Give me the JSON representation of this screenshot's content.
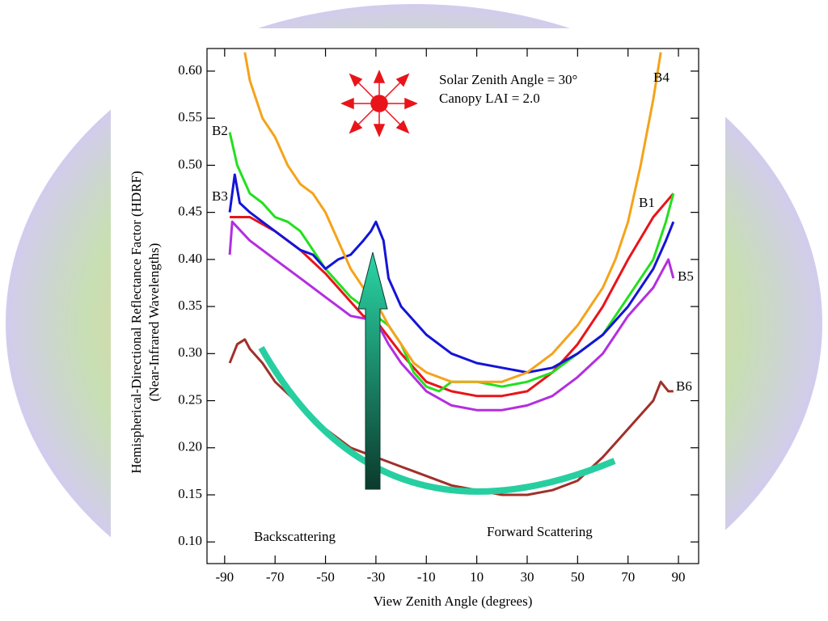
{
  "chart_data": {
    "type": "line",
    "xlabel": "View Zenith Angle (degrees)",
    "ylabel": [
      "Hemispherical-Directional Reflectance Factor (HDRF)",
      "(Near-Infrared Wavelengths)"
    ],
    "annotations": [
      "Solar Zenith Angle = 30°",
      "Canopy LAI = 2.0",
      "Backscattering",
      "Forward Scattering"
    ],
    "xlim": [
      -97,
      98
    ],
    "ylim": [
      0.077,
      0.624
    ],
    "xticks": [
      -90,
      -70,
      -50,
      -30,
      -10,
      10,
      30,
      50,
      70,
      90
    ],
    "yticks": [
      {
        "value": 0.1,
        "label": "0.10"
      },
      {
        "value": 0.15,
        "label": "0.15"
      },
      {
        "value": 0.2,
        "label": "0.20"
      },
      {
        "value": 0.25,
        "label": "0.25"
      },
      {
        "value": 0.3,
        "label": "0.30"
      },
      {
        "value": 0.35,
        "label": "0.35"
      },
      {
        "value": 0.4,
        "label": "0.40"
      },
      {
        "value": 0.45,
        "label": "0.45"
      },
      {
        "value": 0.5,
        "label": "0.50"
      },
      {
        "value": 0.55,
        "label": "0.55"
      },
      {
        "value": 0.6,
        "label": "0.60"
      }
    ],
    "series": [
      {
        "name": "B1",
        "color": "#e8141a",
        "x": [
          -88,
          -80,
          -70,
          -60,
          -50,
          -40,
          -35,
          -30,
          -20,
          -10,
          0,
          10,
          20,
          30,
          40,
          50,
          60,
          70,
          80,
          88
        ],
        "values": [
          0.445,
          0.445,
          0.43,
          0.41,
          0.385,
          0.355,
          0.34,
          0.335,
          0.3,
          0.27,
          0.26,
          0.255,
          0.255,
          0.26,
          0.28,
          0.31,
          0.35,
          0.4,
          0.445,
          0.47
        ]
      },
      {
        "name": "B2",
        "color": "#22e01e",
        "x": [
          -88,
          -85,
          -80,
          -75,
          -70,
          -65,
          -60,
          -55,
          -50,
          -45,
          -40,
          -35,
          -30,
          -25,
          -20,
          -15,
          -10,
          -5,
          0,
          10,
          20,
          30,
          40,
          50,
          60,
          70,
          80,
          85,
          88
        ],
        "values": [
          0.535,
          0.5,
          0.47,
          0.46,
          0.445,
          0.44,
          0.43,
          0.41,
          0.39,
          0.375,
          0.36,
          0.35,
          0.34,
          0.33,
          0.31,
          0.28,
          0.265,
          0.26,
          0.27,
          0.27,
          0.265,
          0.27,
          0.28,
          0.3,
          0.32,
          0.36,
          0.4,
          0.44,
          0.47
        ]
      },
      {
        "name": "B3",
        "color": "#1414d8",
        "x": [
          -88,
          -86,
          -84,
          -80,
          -75,
          -70,
          -65,
          -60,
          -55,
          -50,
          -45,
          -40,
          -35,
          -32,
          -30,
          -27,
          -25,
          -20,
          -10,
          0,
          10,
          20,
          30,
          40,
          50,
          60,
          70,
          80,
          85,
          88
        ],
        "values": [
          0.45,
          0.49,
          0.46,
          0.45,
          0.44,
          0.43,
          0.42,
          0.41,
          0.405,
          0.39,
          0.4,
          0.405,
          0.42,
          0.43,
          0.44,
          0.42,
          0.38,
          0.35,
          0.32,
          0.3,
          0.29,
          0.285,
          0.28,
          0.285,
          0.3,
          0.32,
          0.35,
          0.39,
          0.42,
          0.44
        ]
      },
      {
        "name": "B4",
        "color": "#f5a31a",
        "x": [
          -82,
          -80,
          -75,
          -70,
          -65,
          -60,
          -55,
          -50,
          -45,
          -40,
          -35,
          -30,
          -25,
          -20,
          -15,
          -10,
          0,
          10,
          20,
          30,
          40,
          50,
          60,
          65,
          70,
          75,
          80,
          83
        ],
        "values": [
          0.62,
          0.59,
          0.55,
          0.53,
          0.5,
          0.48,
          0.47,
          0.45,
          0.42,
          0.39,
          0.37,
          0.355,
          0.33,
          0.31,
          0.29,
          0.28,
          0.27,
          0.27,
          0.27,
          0.28,
          0.3,
          0.33,
          0.37,
          0.4,
          0.44,
          0.5,
          0.57,
          0.62
        ]
      },
      {
        "name": "B5",
        "color": "#b32ee0",
        "x": [
          -88,
          -87,
          -80,
          -70,
          -60,
          -50,
          -40,
          -30,
          -25,
          -20,
          -10,
          0,
          10,
          20,
          30,
          40,
          50,
          60,
          70,
          80,
          86,
          88
        ],
        "values": [
          0.405,
          0.44,
          0.42,
          0.4,
          0.38,
          0.36,
          0.34,
          0.335,
          0.31,
          0.29,
          0.26,
          0.245,
          0.24,
          0.24,
          0.245,
          0.255,
          0.275,
          0.3,
          0.34,
          0.37,
          0.4,
          0.38
        ]
      },
      {
        "name": "B6",
        "color": "#a0302a",
        "x": [
          -88,
          -85,
          -82,
          -80,
          -75,
          -70,
          -60,
          -50,
          -40,
          -30,
          -20,
          -10,
          0,
          10,
          20,
          30,
          40,
          50,
          60,
          70,
          80,
          83,
          86,
          88
        ],
        "values": [
          0.29,
          0.31,
          0.315,
          0.305,
          0.29,
          0.27,
          0.245,
          0.22,
          0.2,
          0.19,
          0.18,
          0.17,
          0.16,
          0.155,
          0.15,
          0.15,
          0.155,
          0.165,
          0.19,
          0.22,
          0.25,
          0.27,
          0.26,
          0.26
        ]
      }
    ]
  }
}
